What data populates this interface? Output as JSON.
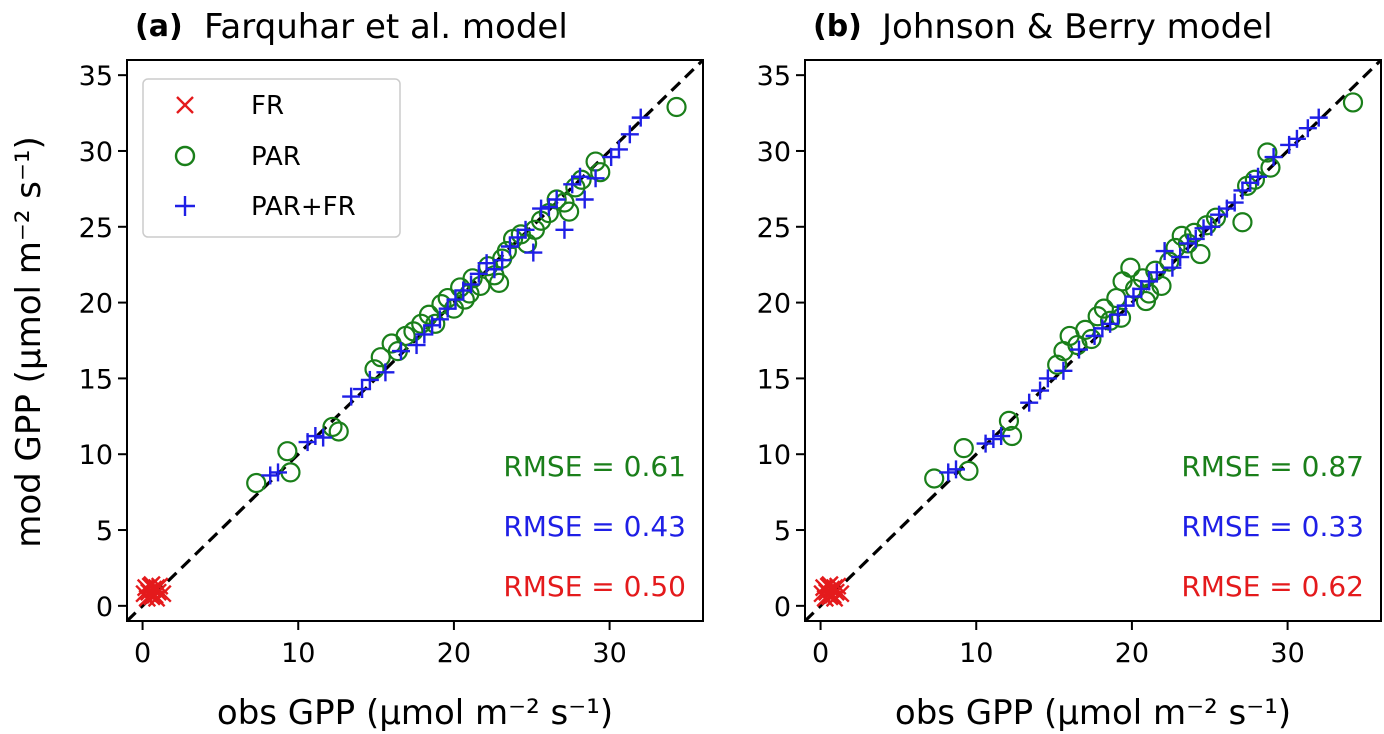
{
  "ylabel": "mod GPP (μmol m⁻² s⁻¹)",
  "chart_data": [
    {
      "type": "scatter",
      "panel_label": "(a)",
      "title": "Farquhar et al. model",
      "xlabel": "obs GPP (μmol m⁻² s⁻¹)",
      "ylabel": "mod GPP (μmol m⁻² s⁻¹)",
      "xlim": [
        -1,
        36
      ],
      "ylim": [
        -1,
        36
      ],
      "xticks": [
        0,
        10,
        20,
        30
      ],
      "yticks": [
        0,
        5,
        10,
        15,
        20,
        25,
        30,
        35
      ],
      "grid": false,
      "legend_position": "top-left",
      "reference_line": "1:1 dashed black",
      "series": [
        {
          "name": "FR",
          "color": "#e41a1c",
          "marker": "x",
          "points": [
            [
              0.1,
              0.8
            ],
            [
              0.2,
              1.2
            ],
            [
              0.4,
              0.9
            ],
            [
              0.5,
              1.3
            ],
            [
              0.6,
              0.6
            ],
            [
              0.7,
              1.1
            ],
            [
              0.8,
              0.7
            ],
            [
              0.9,
              1.2
            ],
            [
              1.0,
              0.9
            ],
            [
              1.1,
              1.3
            ],
            [
              0.3,
              0.5
            ],
            [
              1.3,
              0.8
            ],
            [
              0.6,
              1.4
            ],
            [
              0.9,
              0.5
            ]
          ]
        },
        {
          "name": "PAR",
          "color": "#1a7f1a",
          "marker": "o",
          "points": [
            [
              7.3,
              8.1
            ],
            [
              9.5,
              8.8
            ],
            [
              9.3,
              10.2
            ],
            [
              12.2,
              11.8
            ],
            [
              12.6,
              11.5
            ],
            [
              14.9,
              15.6
            ],
            [
              15.3,
              16.4
            ],
            [
              16.0,
              17.3
            ],
            [
              16.4,
              16.8
            ],
            [
              16.9,
              17.8
            ],
            [
              17.4,
              18.1
            ],
            [
              17.9,
              18.6
            ],
            [
              18.4,
              19.2
            ],
            [
              18.8,
              18.6
            ],
            [
              19.2,
              19.9
            ],
            [
              19.6,
              20.3
            ],
            [
              20.0,
              19.6
            ],
            [
              20.4,
              21.0
            ],
            [
              20.7,
              20.2
            ],
            [
              21.2,
              21.6
            ],
            [
              21.7,
              21.1
            ],
            [
              22.2,
              22.4
            ],
            [
              22.6,
              21.8
            ],
            [
              23.1,
              22.9
            ],
            [
              23.4,
              23.4
            ],
            [
              23.8,
              24.2
            ],
            [
              24.3,
              24.5
            ],
            [
              24.7,
              23.9
            ],
            [
              25.2,
              24.8
            ],
            [
              25.6,
              25.4
            ],
            [
              26.1,
              25.9
            ],
            [
              26.6,
              26.8
            ],
            [
              27.1,
              26.6
            ],
            [
              27.4,
              26.0
            ],
            [
              27.8,
              27.6
            ],
            [
              28.2,
              28.1
            ],
            [
              29.1,
              29.3
            ],
            [
              29.4,
              28.6
            ],
            [
              22.9,
              21.3
            ],
            [
              21.0,
              20.6
            ],
            [
              34.3,
              32.9
            ]
          ]
        },
        {
          "name": "PAR+FR",
          "color": "#1f1fe6",
          "marker": "+",
          "points": [
            [
              8.2,
              8.6
            ],
            [
              8.7,
              8.8
            ],
            [
              10.6,
              10.8
            ],
            [
              11.1,
              11.2
            ],
            [
              11.6,
              11.1
            ],
            [
              13.4,
              13.8
            ],
            [
              14.1,
              14.3
            ],
            [
              14.6,
              14.9
            ],
            [
              15.6,
              15.4
            ],
            [
              16.6,
              16.8
            ],
            [
              17.6,
              17.2
            ],
            [
              18.1,
              17.9
            ],
            [
              18.6,
              18.5
            ],
            [
              19.1,
              18.9
            ],
            [
              19.6,
              19.6
            ],
            [
              20.1,
              20.2
            ],
            [
              20.6,
              20.8
            ],
            [
              21.1,
              21.2
            ],
            [
              21.6,
              21.9
            ],
            [
              22.1,
              22.6
            ],
            [
              22.6,
              22.2
            ],
            [
              23.1,
              22.8
            ],
            [
              23.6,
              23.7
            ],
            [
              24.1,
              24.3
            ],
            [
              24.6,
              24.8
            ],
            [
              25.1,
              23.3
            ],
            [
              25.6,
              26.2
            ],
            [
              26.1,
              26.3
            ],
            [
              26.6,
              26.8
            ],
            [
              27.1,
              24.8
            ],
            [
              27.6,
              27.8
            ],
            [
              28.1,
              28.3
            ],
            [
              28.4,
              26.8
            ],
            [
              29.1,
              28.2
            ],
            [
              30.1,
              29.6
            ],
            [
              30.6,
              30.1
            ],
            [
              31.3,
              31.1
            ],
            [
              32.0,
              32.2
            ]
          ]
        }
      ],
      "annotations": [
        {
          "text": "RMSE = 0.61",
          "color": "#1a7f1a"
        },
        {
          "text": "RMSE = 0.43",
          "color": "#1f1fe6"
        },
        {
          "text": "RMSE = 0.50",
          "color": "#e41a1c"
        }
      ]
    },
    {
      "type": "scatter",
      "panel_label": "(b)",
      "title": "Johnson & Berry model",
      "xlabel": "obs GPP (μmol m⁻² s⁻¹)",
      "ylabel": "mod GPP (μmol m⁻² s⁻¹)",
      "xlim": [
        -1,
        36
      ],
      "ylim": [
        -1,
        36
      ],
      "xticks": [
        0,
        10,
        20,
        30
      ],
      "yticks": [
        0,
        5,
        10,
        15,
        20,
        25,
        30,
        35
      ],
      "grid": false,
      "reference_line": "1:1 dashed black",
      "series": [
        {
          "name": "FR",
          "color": "#e41a1c",
          "marker": "x",
          "points": [
            [
              0.1,
              0.8
            ],
            [
              0.2,
              1.2
            ],
            [
              0.4,
              0.9
            ],
            [
              0.5,
              1.3
            ],
            [
              0.6,
              0.6
            ],
            [
              0.7,
              1.1
            ],
            [
              0.8,
              0.7
            ],
            [
              0.9,
              1.2
            ],
            [
              1.0,
              0.9
            ],
            [
              1.1,
              1.3
            ],
            [
              0.3,
              0.5
            ],
            [
              1.3,
              0.8
            ],
            [
              0.6,
              1.4
            ],
            [
              0.9,
              0.5
            ]
          ]
        },
        {
          "name": "PAR",
          "color": "#1a7f1a",
          "marker": "o",
          "points": [
            [
              7.3,
              8.4
            ],
            [
              9.2,
              10.4
            ],
            [
              9.5,
              8.9
            ],
            [
              12.1,
              12.2
            ],
            [
              12.3,
              11.2
            ],
            [
              15.2,
              15.9
            ],
            [
              15.6,
              16.8
            ],
            [
              16.0,
              17.8
            ],
            [
              16.5,
              17.2
            ],
            [
              17.0,
              18.2
            ],
            [
              17.4,
              17.6
            ],
            [
              17.8,
              19.1
            ],
            [
              18.2,
              19.6
            ],
            [
              18.6,
              18.8
            ],
            [
              19.0,
              20.3
            ],
            [
              19.4,
              21.4
            ],
            [
              19.9,
              22.3
            ],
            [
              20.2,
              20.9
            ],
            [
              20.7,
              21.6
            ],
            [
              21.1,
              20.6
            ],
            [
              21.5,
              22.1
            ],
            [
              21.9,
              21.1
            ],
            [
              22.4,
              22.7
            ],
            [
              22.8,
              23.6
            ],
            [
              23.2,
              24.4
            ],
            [
              23.6,
              23.9
            ],
            [
              24.0,
              24.6
            ],
            [
              24.4,
              23.2
            ],
            [
              24.8,
              25.1
            ],
            [
              25.4,
              25.6
            ],
            [
              27.1,
              25.3
            ],
            [
              27.4,
              27.7
            ],
            [
              27.9,
              28.1
            ],
            [
              28.7,
              29.9
            ],
            [
              28.9,
              28.9
            ],
            [
              34.2,
              33.2
            ],
            [
              19.3,
              19.0
            ],
            [
              20.9,
              20.1
            ]
          ]
        },
        {
          "name": "PAR+FR",
          "color": "#1f1fe6",
          "marker": "+",
          "points": [
            [
              8.2,
              8.8
            ],
            [
              8.7,
              9.0
            ],
            [
              10.6,
              10.7
            ],
            [
              11.1,
              11.0
            ],
            [
              11.6,
              11.2
            ],
            [
              13.4,
              13.4
            ],
            [
              14.1,
              14.2
            ],
            [
              14.6,
              15.0
            ],
            [
              15.6,
              15.5
            ],
            [
              16.6,
              16.9
            ],
            [
              17.6,
              17.8
            ],
            [
              18.1,
              18.3
            ],
            [
              18.6,
              18.6
            ],
            [
              19.1,
              19.2
            ],
            [
              19.6,
              19.8
            ],
            [
              20.1,
              20.4
            ],
            [
              20.6,
              20.9
            ],
            [
              21.1,
              21.4
            ],
            [
              21.6,
              22.0
            ],
            [
              22.1,
              23.4
            ],
            [
              22.6,
              22.3
            ],
            [
              23.1,
              23.0
            ],
            [
              23.6,
              23.9
            ],
            [
              24.1,
              24.2
            ],
            [
              24.6,
              24.9
            ],
            [
              25.1,
              25.0
            ],
            [
              25.6,
              25.8
            ],
            [
              26.1,
              26.2
            ],
            [
              26.6,
              26.6
            ],
            [
              27.1,
              27.4
            ],
            [
              27.6,
              27.9
            ],
            [
              28.1,
              28.3
            ],
            [
              29.1,
              29.6
            ],
            [
              30.1,
              30.4
            ],
            [
              30.6,
              30.8
            ],
            [
              31.3,
              31.5
            ],
            [
              32.0,
              32.2
            ]
          ]
        }
      ],
      "annotations": [
        {
          "text": "RMSE = 0.87",
          "color": "#1a7f1a"
        },
        {
          "text": "RMSE = 0.33",
          "color": "#1f1fe6"
        },
        {
          "text": "RMSE = 0.62",
          "color": "#e41a1c"
        }
      ]
    }
  ]
}
